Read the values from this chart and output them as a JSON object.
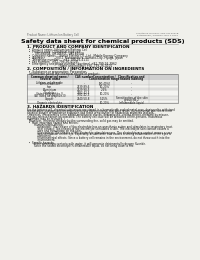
{
  "bg_color": "#f0f0eb",
  "header_left": "Product Name: Lithium Ion Battery Cell",
  "header_right": "Substance Number: SDS-LIB-0001B\nEstablished / Revision: Dec.1.2016",
  "main_title": "Safety data sheet for chemical products (SDS)",
  "s1_title": "1. PRODUCT AND COMPANY IDENTIFICATION",
  "s1_lines": [
    "  •  Product name: Lithium Ion Battery Cell",
    "  •  Product code: Cylindrical-type cell",
    "         UR18650A, UR18650L, UR18650A",
    "  •  Company name:    Sanyo Electric Co., Ltd., Mobile Energy Company",
    "  •  Address:            200-1  Kannondaira, Sumoto-City, Hyogo, Japan",
    "  •  Telephone number:    +81-799-26-4111",
    "  •  Fax number:  +81-799-26-4129",
    "  •  Emergency telephone number (daytime) +81-799-26-3962",
    "                                    (Night and holiday) +81-799-26-4101"
  ],
  "s2_title": "2. COMPOSITION / INFORMATION ON INGREDIENTS",
  "s2_prep": "  •  Substance or preparation: Preparation",
  "s2_info": "  Information about the chemical nature of product:",
  "tbl_h1": "Common chemical name /",
  "tbl_h1b": "Several name",
  "tbl_h2": "CAS number",
  "tbl_h3": "Concentration /\nConcentration range",
  "tbl_h4": "Classification and\nhazard labeling",
  "table_rows": [
    [
      "Lithium cobalt oxide\n(LiMnxCoxNiO2)",
      "-",
      "[30-40%]",
      "-"
    ],
    [
      "Iron",
      "7439-89-6",
      "10-20%",
      "-"
    ],
    [
      "Aluminium",
      "7429-90-5",
      "2-6%",
      "-"
    ],
    [
      "Graphite\n(listed as graphite-I)\n(All listed as graphite-II)",
      "7782-42-5\n7782-42-5",
      "10-20%",
      "-"
    ],
    [
      "Copper",
      "7440-50-8",
      "5-15%",
      "Sensitization of the skin\ngroup No.2"
    ],
    [
      "Organic electrolyte",
      "-",
      "10-20%",
      "Inflammable liquid"
    ]
  ],
  "s3_title": "3. HAZARDS IDENTIFICATION",
  "s3_para1": "For the battery cell, chemical substances are stored in a hermetically sealed metal case, designed to withstand\ntemperature changes and pressure-variations during normal use. As a result, during normal use, there is no\nphysical danger of ignition or explosion and there is no danger of hazardous materials leakage.\n  However, if exposed to a fire added mechanical shocks, decomposed, vented electro-chemical by misuse,\nthe gas release cannot be operated. The battery cell case will be breached of fire-persons. Hazardous\nmaterials may be released.\n  Moreover, if heated strongly by the surrounding fire, solid gas may be emitted.",
  "s3_bullet1_title": "  •  Most important hazard and effects:",
  "s3_human": "        Human health effects:",
  "s3_inhale": "            Inhalation: The release of the electrolyte has an anesthesia action and stimulates in respiratory tract.",
  "s3_skin1": "            Skin contact: The release of the electrolyte stimulates a skin. The electrolyte skin contact causes a",
  "s3_skin2": "            sore and stimulation on the skin.",
  "s3_eye1": "            Eye contact: The release of the electrolyte stimulates eyes. The electrolyte eye contact causes a sore",
  "s3_eye2": "            and stimulation on the eye. Especially, a substance that causes a strong inflammation of the eyes is",
  "s3_eye3": "            contained.",
  "s3_env1": "            Environmental effects: Since a battery cell remains in the environment, do not throw out it into the",
  "s3_env2": "            environment.",
  "s3_bullet2_title": "  •  Specific hazards:",
  "s3_sp1": "        If the electrolyte contacts with water, it will generate detrimental hydrogen fluoride.",
  "s3_sp2": "        Since the sealed electrolyte is inflammable liquid, do not bring close to fire.",
  "text_color": "#111111",
  "line_color": "#999999",
  "title_color": "#000000"
}
